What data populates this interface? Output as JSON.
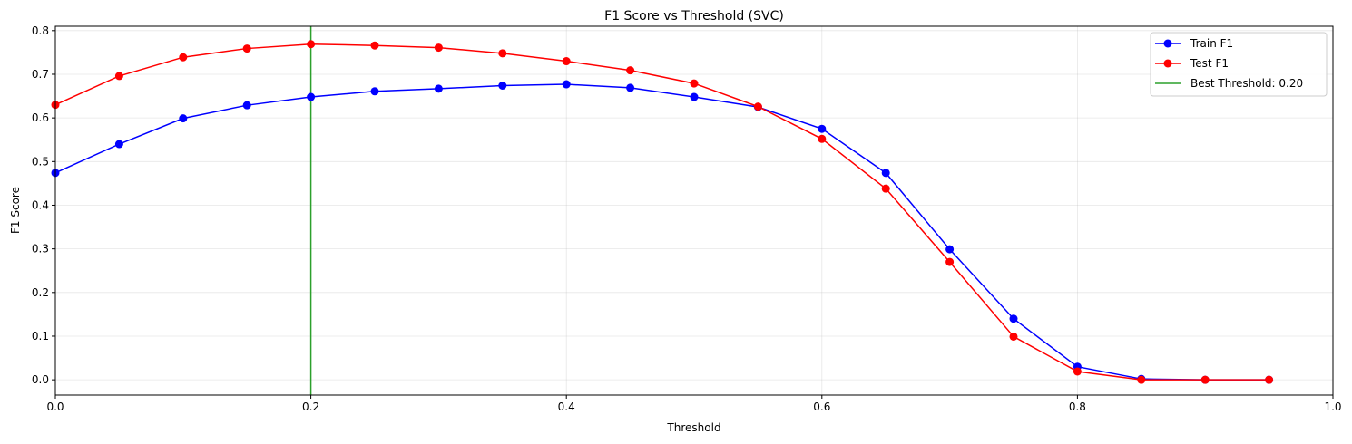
{
  "chart_data": {
    "type": "line",
    "title": "F1 Score vs Threshold (SVC)",
    "xlabel": "Threshold",
    "ylabel": "F1 Score",
    "xlim": [
      0,
      1.0
    ],
    "ylim": [
      -0.035,
      0.81
    ],
    "x_ticks": [
      "0.0",
      "0.2",
      "0.4",
      "0.6",
      "0.8",
      "1.0"
    ],
    "y_ticks": [
      "0.0",
      "0.1",
      "0.2",
      "0.3",
      "0.4",
      "0.5",
      "0.6",
      "0.7",
      "0.8"
    ],
    "x_tick_values": [
      0,
      0.2,
      0.4,
      0.6,
      0.8,
      1.0
    ],
    "y_tick_values": [
      0,
      0.1,
      0.2,
      0.3,
      0.4,
      0.5,
      0.6,
      0.7,
      0.8
    ],
    "grid": true,
    "legend_position": "top-right",
    "x": [
      0.0,
      0.05,
      0.1,
      0.15,
      0.2,
      0.25,
      0.3,
      0.35,
      0.4,
      0.45,
      0.5,
      0.55,
      0.6,
      0.65,
      0.7,
      0.75,
      0.8,
      0.85,
      0.9,
      0.95
    ],
    "series": [
      {
        "name": "Train F1",
        "color": "#0000ff",
        "values": [
          0.474,
          0.54,
          0.599,
          0.629,
          0.648,
          0.661,
          0.667,
          0.674,
          0.677,
          0.669,
          0.648,
          0.625,
          0.575,
          0.474,
          0.299,
          0.14,
          0.03,
          0.002,
          0.0,
          0.0
        ]
      },
      {
        "name": "Test F1",
        "color": "#ff0000",
        "values": [
          0.63,
          0.696,
          0.739,
          0.759,
          0.769,
          0.766,
          0.761,
          0.748,
          0.73,
          0.709,
          0.679,
          0.626,
          0.552,
          0.438,
          0.27,
          0.099,
          0.019,
          0.0,
          0.0,
          0.0
        ]
      }
    ],
    "vlines": [
      {
        "name": "Best Threshold: 0.20",
        "x": 0.2,
        "color": "#2ca02c"
      }
    ]
  }
}
